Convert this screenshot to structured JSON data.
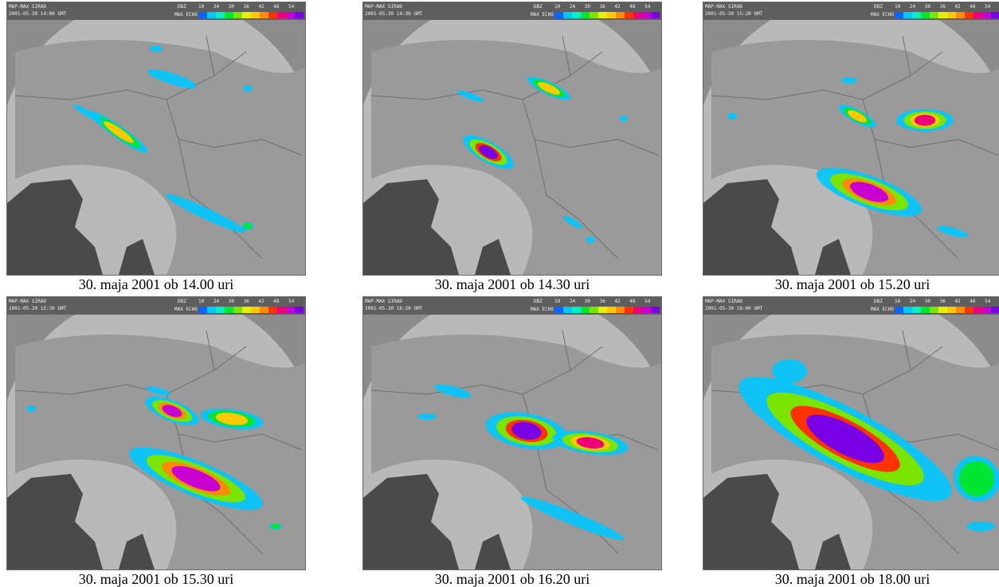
{
  "colors": {
    "frame": "#8c8c8c",
    "radar_disc": "#b9b9b9",
    "sea": "#4a4a4a",
    "plain": "#c4c4c4",
    "hills": "#9a9a9a",
    "scale": [
      "#0a64ff",
      "#00c8ff",
      "#00f0c8",
      "#00e632",
      "#7ae600",
      "#e6f000",
      "#ffc800",
      "#ff8c00",
      "#ff3200",
      "#f00078",
      "#c800d2",
      "#7a00e6"
    ]
  },
  "header": {
    "line1": "MAP-MAX SIRAD",
    "dbz_label": "DBZ",
    "mode_label": "MAX ECHO",
    "ticks": [
      "10",
      "24",
      "30",
      "36",
      "42",
      "48",
      "54"
    ]
  },
  "panels": [
    {
      "caption": "30. maja 2001 ob 14.00 uri",
      "timestamp": "2001-05-30 14:00 GMT"
    },
    {
      "caption": "30. maja 2001 ob 14.30 uri",
      "timestamp": "2001-05-30 14:30 GMT"
    },
    {
      "caption": "30. maja 2001 ob 15.20 uri",
      "timestamp": "2001-05-30 15:20 GMT"
    },
    {
      "caption": "30. maja 2001 ob 15.30 uri",
      "timestamp": "2001-05-30 15:30 GMT"
    },
    {
      "caption": "30. maja 2001 ob 16.20 uri",
      "timestamp": "2001-05-30 16:20 GMT"
    },
    {
      "caption": "30. maja 2001 ob 18.00 uri",
      "timestamp": "2001-05-30 18:00 GMT"
    }
  ]
}
